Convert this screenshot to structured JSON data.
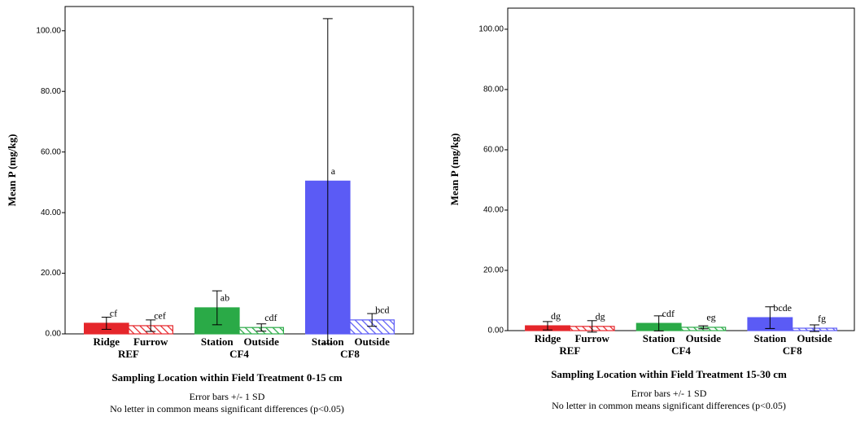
{
  "chart_data": [
    {
      "type": "bar",
      "ylabel": "Mean P (mg/kg)",
      "xlabel": "Sampling Location within Field Treatment 0-15 cm",
      "notes": [
        "Error bars +/- 1 SD",
        "No letter in common means significant differences (p<0.05)"
      ],
      "categories": [
        "Ridge",
        "Furrow",
        "Station",
        "Outside",
        "Station",
        "Outside"
      ],
      "groups": [
        "REF",
        "CF4",
        "CF8"
      ],
      "values": [
        3.5,
        2.7,
        8.6,
        2.1,
        50.4,
        4.6
      ],
      "errors": [
        2.0,
        1.9,
        5.6,
        1.2,
        53.6,
        2.1
      ],
      "letters": [
        "cf",
        "cef",
        "ab",
        "cdf",
        "a",
        "bcd"
      ],
      "colors": [
        "#e5262b",
        "#e5262b",
        "#2aaa47",
        "#2aaa47",
        "#5b5bf5",
        "#5b5bf5"
      ],
      "hatched": [
        false,
        true,
        false,
        true,
        false,
        true
      ],
      "ylim": [
        0,
        108
      ],
      "yticks": [
        {
          "value": 0,
          "label": "0.00"
        },
        {
          "value": 20,
          "label": "20.00"
        },
        {
          "value": 40,
          "label": "40.00"
        },
        {
          "value": 60,
          "label": "60.00"
        },
        {
          "value": 80,
          "label": "80.00"
        },
        {
          "value": 100,
          "label": "100.00"
        }
      ]
    },
    {
      "type": "bar",
      "ylabel": "Mean P (mg/kg)",
      "xlabel": "Sampling Location within Field Treatment 15-30 cm",
      "notes": [
        "Error bars +/- 1 SD",
        "No letter in common means significant differences (p<0.05)"
      ],
      "categories": [
        "Ridge",
        "Furrow",
        "Station",
        "Outside",
        "Station",
        "Outside"
      ],
      "groups": [
        "REF",
        "CF4",
        "CF8"
      ],
      "values": [
        1.6,
        1.4,
        2.4,
        1.1,
        4.3,
        0.8
      ],
      "errors": [
        1.4,
        1.9,
        2.5,
        0.5,
        3.6,
        1.1
      ],
      "letters": [
        "dg",
        "dg",
        "cdf",
        "eg",
        "bcde",
        "fg"
      ],
      "colors": [
        "#e5262b",
        "#e5262b",
        "#2aaa47",
        "#2aaa47",
        "#5b5bf5",
        "#5b5bf5"
      ],
      "hatched": [
        false,
        true,
        false,
        true,
        false,
        true
      ],
      "ylim": [
        0,
        107
      ],
      "yticks": [
        {
          "value": 0,
          "label": "0.00"
        },
        {
          "value": 20,
          "label": "20.00"
        },
        {
          "value": 40,
          "label": "40.00"
        },
        {
          "value": 60,
          "label": "60.00"
        },
        {
          "value": 80,
          "label": "80.00"
        },
        {
          "value": 100,
          "label": "100.00"
        }
      ]
    }
  ]
}
